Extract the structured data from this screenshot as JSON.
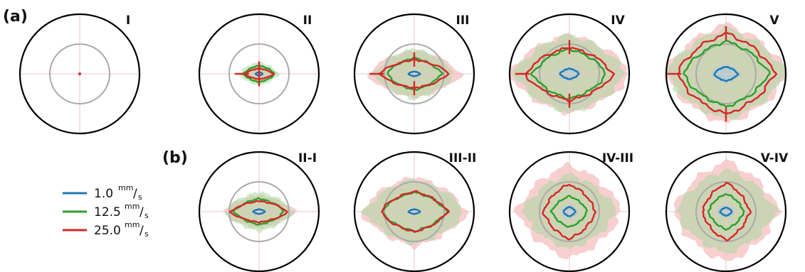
{
  "panel_labels": {
    "a": "(a)",
    "b": "(b)"
  },
  "legend": [
    {
      "value": "1.0",
      "unit_num": "mm",
      "unit_slash": "/",
      "unit_den": "s",
      "color": "#1f77b4"
    },
    {
      "value": "12.5",
      "unit_num": "mm",
      "unit_slash": "/",
      "unit_den": "s",
      "color": "#2ca02c"
    },
    {
      "value": "25.0",
      "unit_num": "mm",
      "unit_slash": "/",
      "unit_den": "s",
      "color": "#d62728"
    }
  ],
  "colors": {
    "outer_ring": "#000000",
    "inner_ring": "#aaaaaa",
    "blue": "#1f77b4",
    "green": "#2ca02c",
    "red": "#d62728",
    "band_red": "#f2a7a7",
    "band_green": "#a7d9a0",
    "band_blue": "#9ec6e6"
  },
  "chart_data": {
    "type": "polar",
    "series_names": [
      "1.0 mm/s",
      "12.5 mm/s",
      "25.0 mm/s"
    ],
    "panels": [
      {
        "id": "I",
        "row": "a",
        "label": "I",
        "inner_ring_radius": 0.5,
        "series": [
          {
            "color": "red",
            "rx": 0.012,
            "ry": 0.012,
            "band": 0
          }
        ]
      },
      {
        "id": "II",
        "row": "a",
        "label": "II",
        "inner_ring_radius": 0.5,
        "series": [
          {
            "color": "green",
            "rx": 0.26,
            "ry": 0.14,
            "band": 0.08
          },
          {
            "color": "red",
            "rx": 0.24,
            "ry": 0.09,
            "band": 0.06
          },
          {
            "color": "blue",
            "rx": 0.06,
            "ry": 0.03,
            "band": 0.01
          }
        ]
      },
      {
        "id": "III",
        "row": "a",
        "label": "III",
        "inner_ring_radius": 0.5,
        "series": [
          {
            "color": "green",
            "rx": 0.46,
            "ry": 0.27,
            "band": 0.22
          },
          {
            "color": "red",
            "rx": 0.58,
            "ry": 0.24,
            "band": 0.22
          },
          {
            "color": "blue",
            "rx": 0.1,
            "ry": 0.04,
            "band": 0.02
          }
        ]
      },
      {
        "id": "IV",
        "row": "a",
        "label": "IV",
        "inner_ring_radius": 0.5,
        "series": [
          {
            "color": "green",
            "rx": 0.62,
            "ry": 0.42,
            "band": 0.33
          },
          {
            "color": "red",
            "rx": 0.74,
            "ry": 0.45,
            "band": 0.3
          },
          {
            "color": "blue",
            "rx": 0.16,
            "ry": 0.09,
            "band": 0.04
          }
        ]
      },
      {
        "id": "V",
        "row": "a",
        "label": "V",
        "inner_ring_radius": 0.5,
        "series": [
          {
            "color": "green",
            "rx": 0.72,
            "ry": 0.55,
            "band": 0.3
          },
          {
            "color": "red",
            "rx": 0.82,
            "ry": 0.68,
            "band": 0.22
          },
          {
            "color": "blue",
            "rx": 0.2,
            "ry": 0.12,
            "band": 0.05
          }
        ]
      },
      {
        "id": "II-I",
        "row": "b",
        "label": "II-I",
        "inner_ring_radius": 0.5,
        "series": [
          {
            "color": "green",
            "rx": 0.42,
            "ry": 0.22,
            "band": 0.16
          },
          {
            "color": "red",
            "rx": 0.48,
            "ry": 0.18,
            "band": 0.14
          },
          {
            "color": "blue",
            "rx": 0.1,
            "ry": 0.04,
            "band": 0.02
          }
        ]
      },
      {
        "id": "III-II",
        "row": "b",
        "label": "III-II",
        "inner_ring_radius": 0.5,
        "series": [
          {
            "color": "green",
            "rx": 0.55,
            "ry": 0.33,
            "band": 0.3
          },
          {
            "color": "red",
            "rx": 0.56,
            "ry": 0.34,
            "band": 0.34
          },
          {
            "color": "blue",
            "rx": 0.1,
            "ry": 0.04,
            "band": 0.02
          }
        ]
      },
      {
        "id": "IV-III",
        "row": "b",
        "label": "IV-III",
        "inner_ring_radius": 0.5,
        "series": [
          {
            "color": "green",
            "rx": 0.3,
            "ry": 0.26,
            "band": 0.5
          },
          {
            "color": "red",
            "rx": 0.44,
            "ry": 0.46,
            "band": 0.45
          },
          {
            "color": "blue",
            "rx": 0.1,
            "ry": 0.08,
            "band": 0.05
          }
        ]
      },
      {
        "id": "V-IV",
        "row": "b",
        "label": "V-IV",
        "inner_ring_radius": 0.5,
        "series": [
          {
            "color": "green",
            "rx": 0.3,
            "ry": 0.3,
            "band": 0.55
          },
          {
            "color": "red",
            "rx": 0.4,
            "ry": 0.48,
            "band": 0.5
          },
          {
            "color": "blue",
            "rx": 0.1,
            "ry": 0.07,
            "band": 0.06
          }
        ]
      }
    ]
  }
}
